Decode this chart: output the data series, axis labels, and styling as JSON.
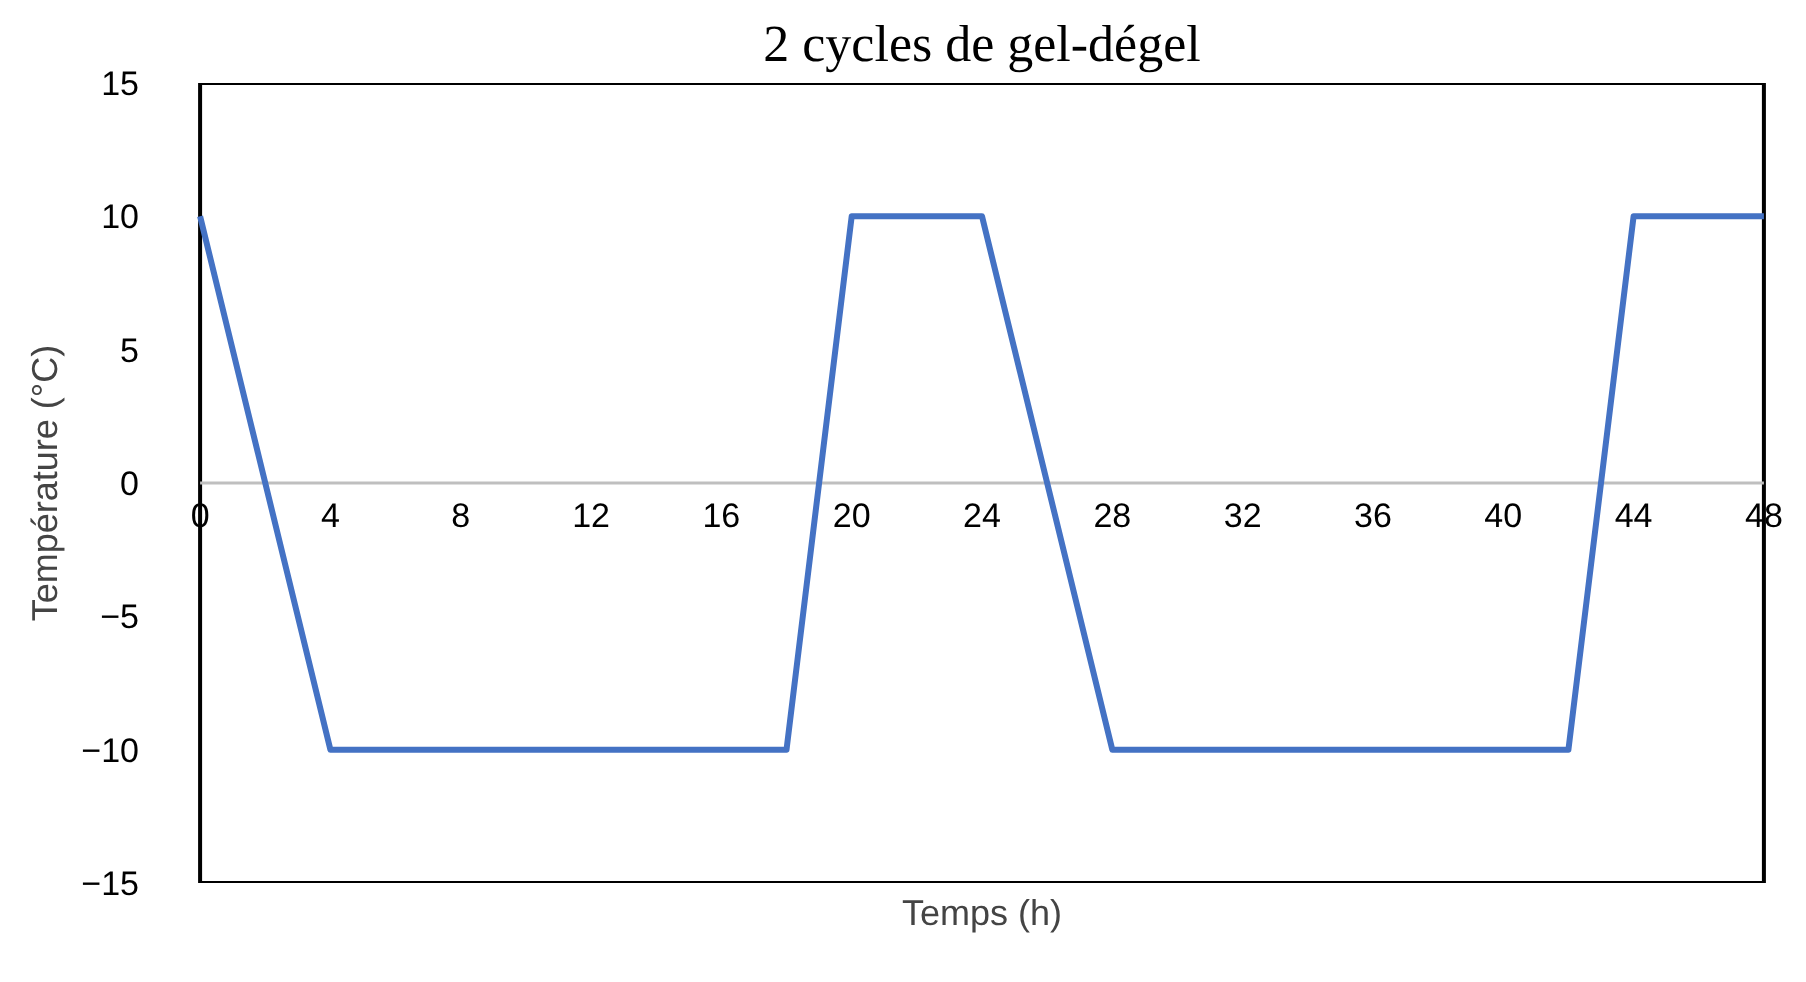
{
  "chart_data": {
    "type": "line",
    "title": "2 cycles de gel-dégel",
    "xlabel": "Temps (h)",
    "ylabel": "Température (°C)",
    "x": [
      0,
      4,
      18,
      20,
      24,
      28,
      42,
      44,
      48
    ],
    "series": [
      {
        "color": "#4472c4",
        "values": [
          10,
          -10,
          -10,
          10,
          10,
          -10,
          -10,
          10,
          10
        ]
      }
    ],
    "xlim": [
      0,
      48
    ],
    "ylim": [
      -15,
      15
    ],
    "xticks": [
      0,
      4,
      8,
      12,
      16,
      20,
      24,
      28,
      32,
      36,
      40,
      44,
      48
    ],
    "yticks": [
      -15,
      -10,
      -5,
      0,
      5,
      10,
      15
    ],
    "grid": false,
    "marker": "none",
    "line_style": "solid"
  }
}
